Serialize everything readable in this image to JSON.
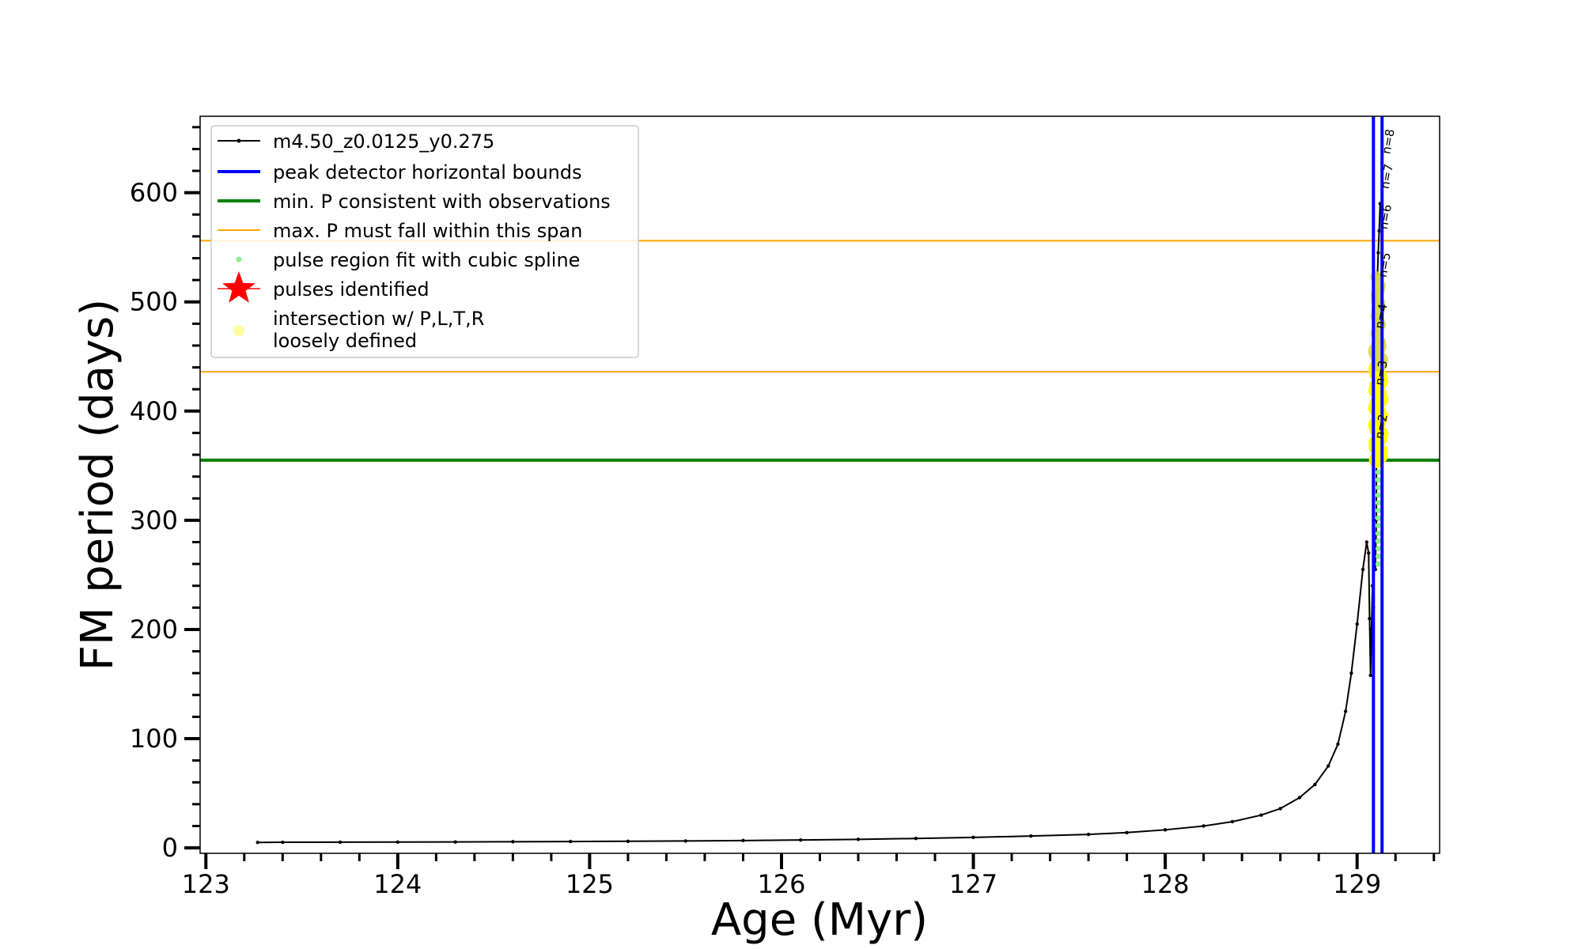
{
  "chart_data": {
    "type": "line",
    "xlabel": "Age (Myr)",
    "ylabel": "FM period (days)",
    "xlim": [
      122.97,
      129.43
    ],
    "ylim": [
      -5,
      670
    ],
    "x_ticks": [
      123,
      124,
      125,
      126,
      127,
      128,
      129
    ],
    "x_tick_labels": [
      "123",
      "124",
      "125",
      "126",
      "127",
      "128",
      "129"
    ],
    "y_ticks": [
      0,
      100,
      200,
      300,
      400,
      500,
      600
    ],
    "y_tick_labels": [
      "0",
      "100",
      "200",
      "300",
      "400",
      "500",
      "600"
    ],
    "legend": {
      "placement": "upper left",
      "entries": [
        {
          "label": "m4.50_z0.0125_y0.275",
          "style": "line-marker",
          "color": "#000000"
        },
        {
          "label": "peak detector horizontal bounds",
          "style": "line",
          "color": "#0000ff"
        },
        {
          "label": "min. P consistent with observations",
          "style": "line",
          "color": "#008000"
        },
        {
          "label": "max. P must fall within this span",
          "style": "line",
          "color": "#ffa500"
        },
        {
          "label": "pulse region fit with cubic spline",
          "style": "dot",
          "color": "#90ee90"
        },
        {
          "label": "pulses identified",
          "style": "star",
          "color": "#ff0000"
        },
        {
          "label": "intersection w/ P,L,T,R\nloosely defined",
          "style": "dot",
          "color": "#ffffa0"
        }
      ]
    },
    "series": [
      {
        "name": "m4.50_z0.0125_y0.275",
        "color": "#000000",
        "points": [
          [
            123.27,
            5.0
          ],
          [
            123.4,
            5.1
          ],
          [
            123.7,
            5.2
          ],
          [
            124.0,
            5.3
          ],
          [
            124.3,
            5.4
          ],
          [
            124.6,
            5.6
          ],
          [
            124.9,
            5.8
          ],
          [
            125.2,
            6.0
          ],
          [
            125.5,
            6.3
          ],
          [
            125.8,
            6.7
          ],
          [
            126.1,
            7.2
          ],
          [
            126.4,
            7.8
          ],
          [
            126.7,
            8.6
          ],
          [
            127.0,
            9.6
          ],
          [
            127.3,
            10.8
          ],
          [
            127.6,
            12.3
          ],
          [
            127.8,
            14.0
          ],
          [
            128.0,
            16.5
          ],
          [
            128.2,
            20.0
          ],
          [
            128.35,
            24.0
          ],
          [
            128.5,
            30.0
          ],
          [
            128.6,
            36.0
          ],
          [
            128.7,
            46.0
          ],
          [
            128.78,
            58.0
          ],
          [
            128.85,
            75.0
          ],
          [
            128.9,
            95.0
          ],
          [
            128.94,
            125.0
          ],
          [
            128.97,
            160.0
          ],
          [
            129.0,
            205.0
          ],
          [
            129.03,
            255.0
          ],
          [
            129.05,
            280.0
          ],
          [
            129.06,
            270.0
          ],
          [
            129.065,
            210.0
          ],
          [
            129.07,
            158.0
          ],
          [
            129.075,
            200.0
          ],
          [
            129.08,
            240.0
          ],
          [
            129.085,
            220.0
          ],
          [
            129.09,
            275.0
          ],
          [
            129.095,
            255.0
          ],
          [
            129.1,
            300.0
          ],
          [
            129.1,
            380.0
          ],
          [
            129.1,
            470.0
          ],
          [
            129.105,
            520.0
          ],
          [
            129.11,
            545.0
          ],
          [
            129.115,
            565.0
          ],
          [
            129.12,
            590.0
          ]
        ]
      },
      {
        "name": "min. P consistent with observations",
        "color": "#008000",
        "y": 355
      },
      {
        "name": "max. P must fall within this span",
        "color": "#ffa500",
        "y_values": [
          436,
          556
        ]
      },
      {
        "name": "peak detector horizontal bounds",
        "color": "#0000ff",
        "x_values": [
          129.085,
          129.13
        ]
      },
      {
        "name": "pulse region fit with cubic spline",
        "color": "#90ee90",
        "x": 129.11,
        "y_range": [
          260,
          350
        ]
      },
      {
        "name": "intersection w/ P,L,T,R loosely defined",
        "color": "#ffff00",
        "x": 129.11,
        "y_range": [
          355,
          525
        ]
      }
    ],
    "annotations": [
      {
        "text": "n=2",
        "x": 129.118,
        "y": 374
      },
      {
        "text": "n=3",
        "x": 129.118,
        "y": 423
      },
      {
        "text": "n=4",
        "x": 129.118,
        "y": 475
      },
      {
        "text": "n=5",
        "x": 129.135,
        "y": 522
      },
      {
        "text": "n=6",
        "x": 129.14,
        "y": 566
      },
      {
        "text": "n=7",
        "x": 129.148,
        "y": 603
      },
      {
        "text": "n=8",
        "x": 129.155,
        "y": 635
      }
    ]
  }
}
